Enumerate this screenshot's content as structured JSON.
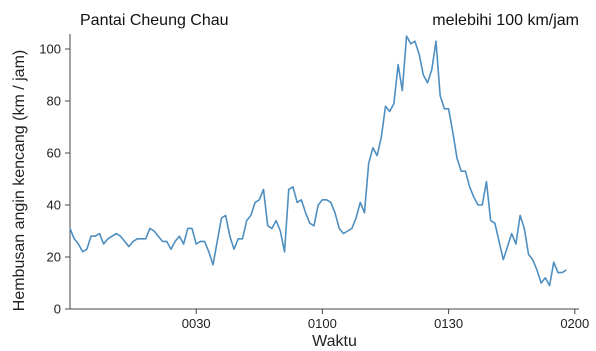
{
  "chart_data": {
    "type": "line",
    "title": "",
    "annotations": {
      "left": "Pantai Cheung Chau",
      "right": "melebihi 100 km/jam"
    },
    "xlabel": "Waktu",
    "ylabel": "Hembusan angin kencang (km / jam)",
    "x_start_time": "0000",
    "x_interval_minutes": 1,
    "x_ticks": [
      {
        "minute": 30,
        "label": "0030"
      },
      {
        "minute": 60,
        "label": "0100"
      },
      {
        "minute": 90,
        "label": "0130"
      },
      {
        "minute": 120,
        "label": "0200"
      }
    ],
    "xlim_minutes": [
      0,
      121
    ],
    "ylim": [
      0,
      105
    ],
    "y_ticks": [
      0,
      20,
      40,
      60,
      80,
      100
    ],
    "grid": false,
    "colors": {
      "series": "#4f8fc0",
      "axis": "#444444"
    },
    "series": [
      {
        "values": [
          31,
          27,
          25,
          22,
          23,
          28,
          28,
          29,
          25,
          27,
          28,
          29,
          28,
          26,
          24,
          26,
          27,
          27,
          27,
          31,
          30,
          28,
          26,
          26,
          23,
          26,
          28,
          25,
          31,
          31,
          25,
          26,
          26,
          22,
          17,
          26,
          35,
          36,
          28,
          23,
          27,
          27,
          34,
          36,
          41,
          42,
          46,
          32,
          31,
          34,
          30,
          22,
          46,
          47,
          41,
          42,
          37,
          33,
          32,
          40,
          42,
          42,
          41,
          37,
          31,
          29,
          30,
          31,
          35,
          41,
          37,
          56,
          62,
          59,
          66,
          78,
          76,
          79,
          94,
          84,
          105,
          102,
          103,
          98,
          90,
          87,
          92,
          103,
          82,
          77,
          77,
          68,
          58,
          53,
          53,
          47,
          43,
          40,
          40,
          49,
          34,
          33,
          26,
          19,
          24,
          29,
          25,
          36,
          31,
          21,
          19,
          15,
          10,
          12,
          9,
          18,
          14,
          14,
          15
        ]
      }
    ]
  }
}
